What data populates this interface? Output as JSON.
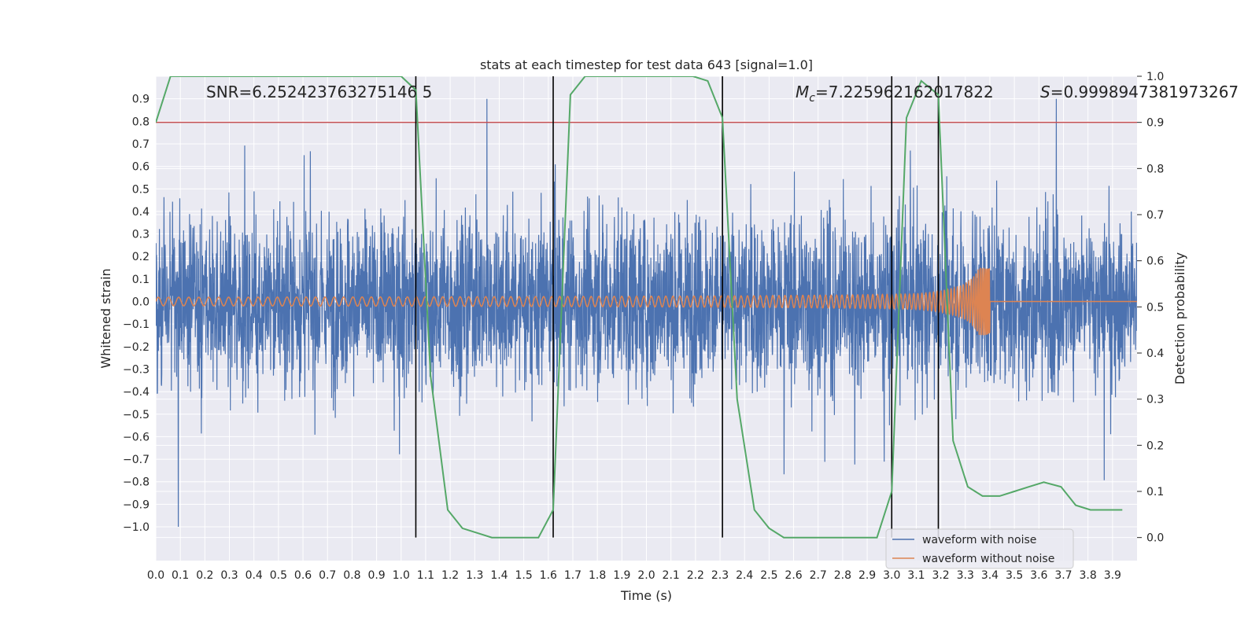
{
  "chart_data": {
    "type": "line",
    "title": "stats at each timestep for test data 643 [signal=1.0]",
    "xlabel": "Time (s)",
    "ylabel": "Whitened strain",
    "ylabel_right": "Detection probability",
    "xlim": [
      0.0,
      4.0
    ],
    "ylim": [
      -1.15,
      1.0
    ],
    "ylim_right": [
      -0.05,
      1.0
    ],
    "x_ticks": [
      "0.0",
      "0.1",
      "0.2",
      "0.3",
      "0.4",
      "0.5",
      "0.6",
      "0.7",
      "0.8",
      "0.9",
      "1.0",
      "1.1",
      "1.2",
      "1.3",
      "1.4",
      "1.5",
      "1.6",
      "1.7",
      "1.8",
      "1.9",
      "2.0",
      "2.1",
      "2.2",
      "2.3",
      "2.4",
      "2.5",
      "2.6",
      "2.7",
      "2.8",
      "2.9",
      "3.0",
      "3.1",
      "3.2",
      "3.3",
      "3.4",
      "3.5",
      "3.6",
      "3.7",
      "3.8",
      "3.9"
    ],
    "y_ticks": [
      "0.9",
      "0.8",
      "0.7",
      "0.6",
      "0.5",
      "0.4",
      "0.3",
      "0.2",
      "0.1",
      "0.0",
      "−0.1",
      "−0.2",
      "−0.3",
      "−0.4",
      "−0.5",
      "−0.6",
      "−0.7",
      "−0.8",
      "−0.9",
      "−1.0"
    ],
    "y_ticks_right": [
      "1.0",
      "0.9",
      "0.8",
      "0.7",
      "0.6",
      "0.5",
      "0.4",
      "0.3",
      "0.2",
      "0.1",
      "0.0"
    ],
    "annotations": {
      "snr": "SNR=6.252423763275146 5",
      "mc_prefix": "M",
      "mc_sub": "c",
      "mc_value": "=7.225962162017822",
      "s_prefix": "S",
      "s_value": "=0.9998947381973267"
    },
    "threshold": 0.9,
    "vertical_lines": [
      1.06,
      1.62,
      2.31,
      3.0,
      3.19
    ],
    "detection_probability": {
      "x": [
        0.0,
        0.06,
        0.12,
        0.19,
        0.25,
        0.31,
        0.37,
        0.44,
        0.5,
        0.56,
        0.62,
        0.69,
        0.75,
        0.81,
        0.87,
        0.94,
        1.0,
        1.06,
        1.12,
        1.19,
        1.25,
        1.31,
        1.37,
        1.44,
        1.5,
        1.56,
        1.62,
        1.69,
        1.75,
        1.81,
        1.87,
        1.94,
        2.0,
        2.06,
        2.12,
        2.19,
        2.25,
        2.31,
        2.37,
        2.44,
        2.5,
        2.56,
        2.62,
        2.69,
        2.75,
        2.81,
        2.87,
        2.94,
        3.0,
        3.06,
        3.12,
        3.19,
        3.25,
        3.31,
        3.37,
        3.44,
        3.5,
        3.56,
        3.62,
        3.69,
        3.75,
        3.81,
        3.87,
        3.94
      ],
      "values": [
        0.9,
        1.0,
        1.0,
        1.0,
        1.0,
        1.0,
        1.0,
        1.0,
        1.0,
        1.0,
        1.0,
        1.0,
        1.0,
        1.0,
        1.0,
        1.0,
        1.0,
        0.97,
        0.35,
        0.06,
        0.02,
        0.01,
        0.0,
        0.0,
        0.0,
        0.0,
        0.06,
        0.96,
        1.0,
        1.0,
        1.0,
        1.0,
        1.0,
        1.0,
        1.0,
        1.0,
        0.99,
        0.91,
        0.3,
        0.06,
        0.02,
        0.0,
        0.0,
        0.0,
        0.0,
        0.0,
        0.0,
        0.0,
        0.1,
        0.91,
        0.99,
        0.96,
        0.21,
        0.11,
        0.09,
        0.09,
        0.1,
        0.11,
        0.12,
        0.11,
        0.07,
        0.06,
        0.06,
        0.06
      ]
    },
    "series": [
      {
        "name": "waveform with noise",
        "color": "#4c72b0",
        "amplitude_range": [
          -1.0,
          0.9
        ]
      },
      {
        "name": "waveform without noise",
        "color": "#dd8452",
        "merger_time": 3.4,
        "peak_amplitude": 0.15
      }
    ],
    "colors": {
      "background": "#eaeaf2",
      "grid": "#ffffff",
      "noise": "#4c72b0",
      "clean": "#dd8452",
      "probability": "#55a868",
      "threshold": "#c44e52",
      "vline": "#000000"
    }
  }
}
